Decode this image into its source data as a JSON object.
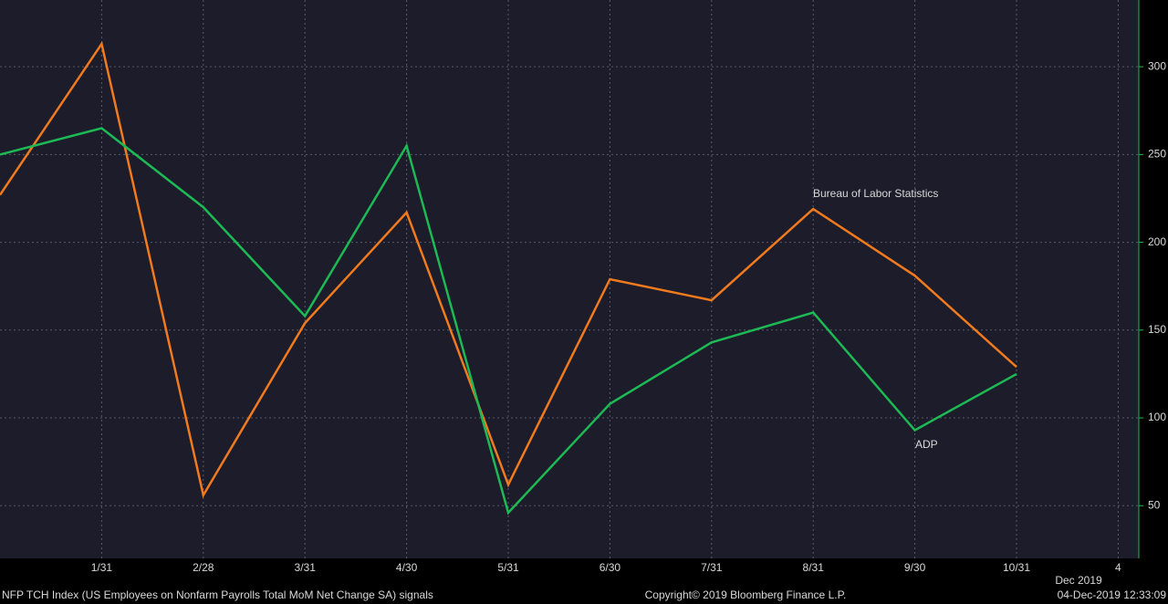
{
  "chart_data": {
    "type": "line",
    "footnote": "NFP TCH Index (US Employees on Nonfarm Payrolls Total MoM Net Change SA) signals",
    "copyright": "Copyright© 2019 Bloomberg Finance L.P.",
    "timestamp": "04-Dec-2019 12:33:09",
    "period_label": "Dec 2019",
    "categories": [
      null,
      "1/31",
      "2/28",
      "3/31",
      "4/30",
      "5/31",
      "6/30",
      "7/31",
      "8/31",
      "9/30",
      "10/31",
      "4"
    ],
    "series": [
      {
        "name": "Bureau of Labor Statistics",
        "color": "#f07a1e",
        "values": [
          227,
          313,
          56,
          154,
          217,
          62,
          179,
          167,
          219,
          181,
          129,
          null
        ]
      },
      {
        "name": "ADP",
        "color": "#1db954",
        "values": [
          250,
          265,
          220,
          158,
          255,
          46,
          108,
          143,
          160,
          93,
          125,
          null
        ]
      }
    ],
    "ylim": [
      20,
      338
    ],
    "yticks": [
      50,
      100,
      150,
      200,
      250,
      300
    ],
    "grid": true,
    "background": "#1c1c2b"
  }
}
